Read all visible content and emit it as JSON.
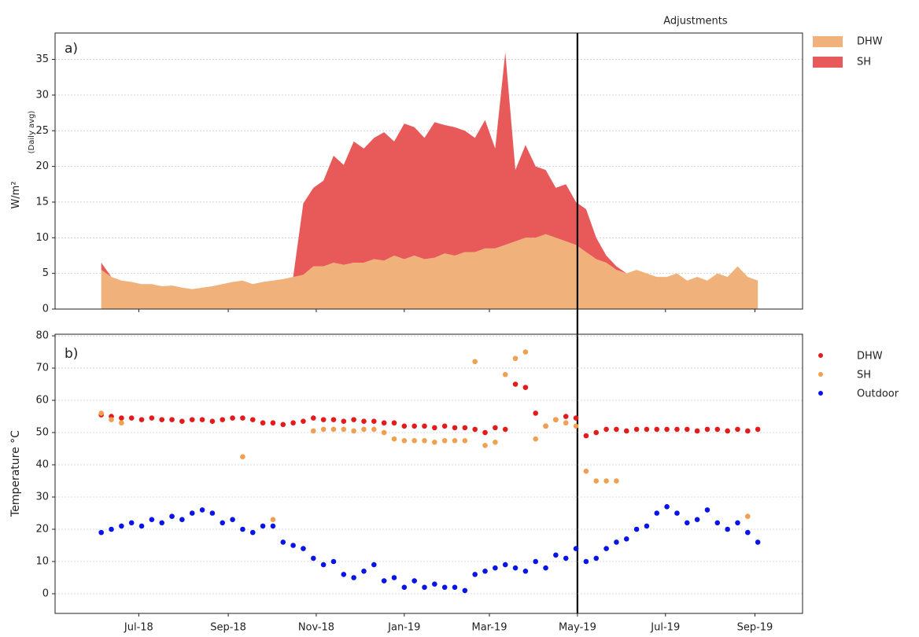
{
  "chart_data": [
    {
      "type": "stacked-area",
      "panel_label": "a)",
      "ylabel": "W/m²",
      "ylabel_note": "(Daily avg)",
      "annotations": [
        {
          "x": "2019-05-01",
          "text": "Adjustments"
        }
      ],
      "xlim": [
        "2018-05-04",
        "2019-10-04"
      ],
      "ylim": [
        0,
        38.7
      ],
      "yticks": [
        0,
        5,
        10,
        15,
        20,
        25,
        30,
        35
      ],
      "grid": true,
      "legend": "outside-right-top",
      "x": [
        "2018-06-05",
        "2018-06-12",
        "2018-06-19",
        "2018-06-26",
        "2018-07-03",
        "2018-07-10",
        "2018-07-17",
        "2018-07-24",
        "2018-07-31",
        "2018-08-07",
        "2018-08-14",
        "2018-08-21",
        "2018-08-28",
        "2018-09-04",
        "2018-09-11",
        "2018-09-18",
        "2018-09-25",
        "2018-10-02",
        "2018-10-09",
        "2018-10-16",
        "2018-10-23",
        "2018-10-30",
        "2018-11-06",
        "2018-11-13",
        "2018-11-20",
        "2018-11-27",
        "2018-12-04",
        "2018-12-11",
        "2018-12-18",
        "2018-12-25",
        "2019-01-01",
        "2019-01-08",
        "2019-01-15",
        "2019-01-22",
        "2019-01-29",
        "2019-02-05",
        "2019-02-12",
        "2019-02-19",
        "2019-02-26",
        "2019-03-05",
        "2019-03-12",
        "2019-03-19",
        "2019-03-26",
        "2019-04-02",
        "2019-04-09",
        "2019-04-16",
        "2019-04-23",
        "2019-04-30",
        "2019-05-07",
        "2019-05-14",
        "2019-05-21",
        "2019-05-28",
        "2019-06-04",
        "2019-06-11",
        "2019-06-18",
        "2019-06-25",
        "2019-07-02",
        "2019-07-09",
        "2019-07-16",
        "2019-07-23",
        "2019-07-30",
        "2019-08-06",
        "2019-08-13",
        "2019-08-20",
        "2019-08-27",
        "2019-09-03"
      ],
      "series": [
        {
          "name": "DHW",
          "color": "#f0b27a",
          "values": [
            5.5,
            4.5,
            4,
            3.8,
            3.5,
            3.5,
            3.2,
            3.3,
            3,
            2.8,
            3,
            3.2,
            3.5,
            3.8,
            4,
            3.5,
            3.8,
            4,
            4.2,
            4.5,
            4.8,
            6,
            6,
            6.5,
            6.2,
            6.5,
            6.5,
            7,
            6.8,
            7.5,
            7,
            7.5,
            7,
            7.2,
            7.8,
            7.5,
            8,
            8,
            8.5,
            8.5,
            9,
            9.5,
            10,
            10,
            10.5,
            10,
            9.5,
            9,
            8,
            7,
            6.5,
            5.5,
            5,
            5.5,
            5,
            4.5,
            4.5,
            5,
            4,
            4.5,
            4,
            5,
            4.5,
            6,
            4.5,
            4
          ]
        },
        {
          "name": "SH",
          "color": "#e85a5a",
          "values": [
            1,
            0,
            0,
            0,
            0,
            0,
            0,
            0,
            0,
            0,
            0,
            0,
            0,
            0,
            0,
            0,
            0,
            0,
            0,
            0,
            10,
            11,
            12,
            15,
            14,
            17,
            16,
            17,
            18,
            16,
            19,
            18,
            17,
            19,
            18,
            18,
            17,
            16,
            18,
            14,
            27,
            10,
            13,
            10,
            9,
            7,
            8,
            6,
            6,
            3,
            1,
            0.5,
            0,
            0,
            0,
            0,
            0,
            0,
            0,
            0,
            0,
            0,
            0,
            0,
            0,
            0
          ]
        }
      ]
    },
    {
      "type": "scatter",
      "panel_label": "b)",
      "ylabel": "Temperature °C",
      "xlim": [
        "2018-05-04",
        "2019-10-04"
      ],
      "ylim": [
        -6.1,
        80.5
      ],
      "yticks": [
        0,
        10,
        20,
        30,
        40,
        50,
        60,
        70,
        80
      ],
      "grid": true,
      "legend": "outside-right-top",
      "xticks": [
        {
          "value": "2018-07-01",
          "label": "Jul-18"
        },
        {
          "value": "2018-09-01",
          "label": "Sep-18"
        },
        {
          "value": "2018-11-01",
          "label": "Nov-18"
        },
        {
          "value": "2019-01-01",
          "label": "Jan-19"
        },
        {
          "value": "2019-03-01",
          "label": "Mar-19"
        },
        {
          "value": "2019-05-01",
          "label": "May-19"
        },
        {
          "value": "2019-07-01",
          "label": "Jul-19"
        },
        {
          "value": "2019-09-01",
          "label": "Sep-19"
        }
      ],
      "x": [
        "2018-06-05",
        "2018-06-12",
        "2018-06-19",
        "2018-06-26",
        "2018-07-03",
        "2018-07-10",
        "2018-07-17",
        "2018-07-24",
        "2018-07-31",
        "2018-08-07",
        "2018-08-14",
        "2018-08-21",
        "2018-08-28",
        "2018-09-04",
        "2018-09-11",
        "2018-09-18",
        "2018-09-25",
        "2018-10-02",
        "2018-10-09",
        "2018-10-16",
        "2018-10-23",
        "2018-10-30",
        "2018-11-06",
        "2018-11-13",
        "2018-11-20",
        "2018-11-27",
        "2018-12-04",
        "2018-12-11",
        "2018-12-18",
        "2018-12-25",
        "2019-01-01",
        "2019-01-08",
        "2019-01-15",
        "2019-01-22",
        "2019-01-29",
        "2019-02-05",
        "2019-02-12",
        "2019-02-19",
        "2019-02-26",
        "2019-03-05",
        "2019-03-12",
        "2019-03-19",
        "2019-03-26",
        "2019-04-02",
        "2019-04-09",
        "2019-04-16",
        "2019-04-23",
        "2019-04-30",
        "2019-05-07",
        "2019-05-14",
        "2019-05-21",
        "2019-05-28",
        "2019-06-04",
        "2019-06-11",
        "2019-06-18",
        "2019-06-25",
        "2019-07-02",
        "2019-07-09",
        "2019-07-16",
        "2019-07-23",
        "2019-07-30",
        "2019-08-06",
        "2019-08-13",
        "2019-08-20",
        "2019-08-27",
        "2019-09-03"
      ],
      "series": [
        {
          "name": "DHW",
          "color": "#e41a1c",
          "values": [
            55.5,
            55,
            54.5,
            54.5,
            54,
            54.5,
            54,
            54,
            53.5,
            54,
            54,
            53.5,
            54,
            54.5,
            54.5,
            54,
            53,
            53,
            52.5,
            53,
            53.5,
            54.5,
            54,
            54,
            53.5,
            54,
            53.5,
            53.5,
            53,
            53,
            52,
            52,
            52,
            51.5,
            52,
            51.5,
            51.5,
            51,
            50,
            51.5,
            51,
            65,
            64,
            56,
            52,
            54,
            55,
            54.5,
            49,
            50,
            51,
            51,
            50.5,
            51,
            51,
            51,
            51,
            51,
            51,
            50.5,
            51,
            51,
            50.5,
            51,
            50.5,
            51
          ]
        },
        {
          "name": "SH",
          "color": "#f0a050",
          "values": [
            56,
            54,
            53,
            null,
            null,
            null,
            null,
            null,
            null,
            null,
            null,
            null,
            null,
            null,
            42.5,
            null,
            null,
            23,
            null,
            null,
            null,
            50.5,
            51,
            51,
            51,
            50.5,
            51,
            51,
            50,
            48,
            47.5,
            47.5,
            47.5,
            47,
            47.5,
            47.5,
            47.5,
            72,
            46,
            47,
            68,
            73,
            75,
            48,
            52,
            54,
            53,
            52,
            38,
            35,
            35,
            35,
            null,
            null,
            null,
            null,
            null,
            null,
            null,
            null,
            null,
            null,
            null,
            null,
            24,
            null
          ]
        },
        {
          "name": "Outdoor",
          "color": "#0a14e6",
          "values": [
            19,
            20,
            21,
            22,
            21,
            23,
            22,
            24,
            23,
            25,
            26,
            25,
            22,
            23,
            20,
            19,
            21,
            21,
            16,
            15,
            14,
            11,
            9,
            10,
            6,
            5,
            7,
            9,
            4,
            5,
            2,
            4,
            2,
            3,
            2,
            2,
            1,
            6,
            7,
            8,
            9,
            8,
            7,
            10,
            8,
            12,
            11,
            14,
            10,
            11,
            14,
            16,
            17,
            20,
            21,
            25,
            27,
            25,
            22,
            23,
            26,
            22,
            20,
            22,
            19,
            16
          ]
        }
      ]
    }
  ]
}
